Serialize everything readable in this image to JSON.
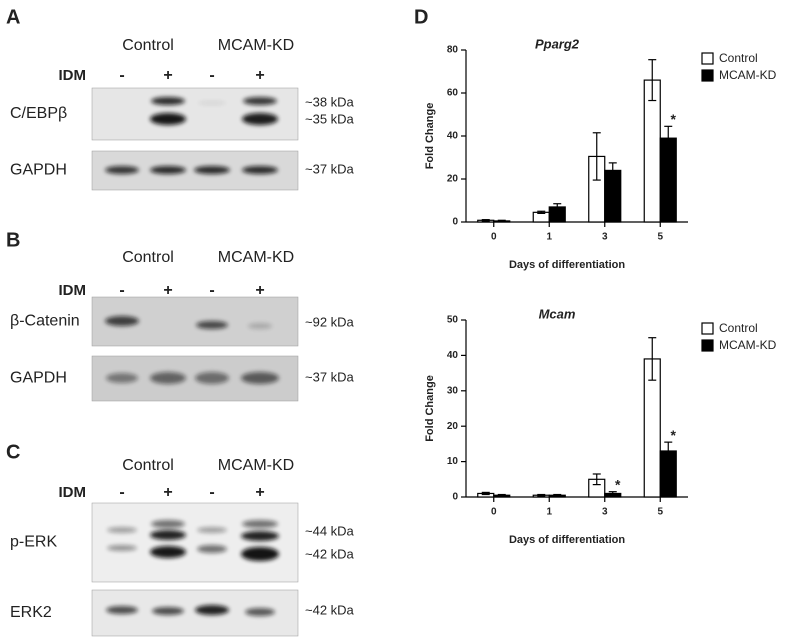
{
  "blots": [
    {
      "letter": "A",
      "groups": [
        "Control",
        "MCAM-KD"
      ],
      "treatment": "IDM",
      "lanes": [
        "-",
        "+",
        "-",
        "+"
      ],
      "rows": [
        {
          "label": "C/EBPβ",
          "sizes": [
            "~38 kDa",
            "~35 kDa"
          ]
        },
        {
          "label": "GAPDH",
          "sizes": [
            "~37 kDa"
          ]
        }
      ]
    },
    {
      "letter": "B",
      "groups": [
        "Control",
        "MCAM-KD"
      ],
      "treatment": "IDM",
      "lanes": [
        "-",
        "+",
        "-",
        "+"
      ],
      "rows": [
        {
          "label": "β-Catenin",
          "sizes": [
            "~92 kDa"
          ]
        },
        {
          "label": "GAPDH",
          "sizes": [
            "~37 kDa"
          ]
        }
      ]
    },
    {
      "letter": "C",
      "groups": [
        "Control",
        "MCAM-KD"
      ],
      "treatment": "IDM",
      "lanes": [
        "-",
        "+",
        "-",
        "+"
      ],
      "rows": [
        {
          "label": "p-ERK",
          "sizes": [
            "~44 kDa",
            "~42 kDa"
          ]
        },
        {
          "label": "ERK2",
          "sizes": [
            "~42 kDa"
          ]
        }
      ]
    }
  ],
  "chart_letter": "D",
  "chart_data": [
    {
      "type": "bar",
      "title": "Pparg2",
      "xlabel": "Days of differentiation",
      "ylabel": "Fold Change",
      "categories": [
        "0",
        "1",
        "3",
        "5"
      ],
      "series": [
        {
          "name": "Control",
          "color": "#ffffff",
          "values": [
            0.8,
            4.5,
            30.5,
            66
          ],
          "errors": [
            0.3,
            0.5,
            11,
            9.5
          ],
          "significance": [
            null,
            null,
            null,
            null
          ]
        },
        {
          "name": "MCAM-KD",
          "color": "#000000",
          "values": [
            0.5,
            7,
            24,
            39
          ],
          "errors": [
            0.3,
            1.5,
            3.5,
            5.5
          ],
          "significance": [
            null,
            null,
            null,
            "*"
          ]
        }
      ],
      "ylim": [
        0,
        80
      ],
      "yticks": [
        0,
        20,
        40,
        60,
        80
      ],
      "legend": "upper right"
    },
    {
      "type": "bar",
      "title": "Mcam",
      "xlabel": "Days of differentiation",
      "ylabel": "Fold Change",
      "categories": [
        "0",
        "1",
        "3",
        "5"
      ],
      "series": [
        {
          "name": "Control",
          "color": "#ffffff",
          "values": [
            1,
            0.5,
            5,
            39
          ],
          "errors": [
            0.3,
            0.2,
            1.5,
            6
          ],
          "significance": [
            null,
            null,
            null,
            null
          ]
        },
        {
          "name": "MCAM-KD",
          "color": "#000000",
          "values": [
            0.5,
            0.5,
            1,
            13
          ],
          "errors": [
            0.2,
            0.2,
            0.5,
            2.5
          ],
          "significance": [
            null,
            null,
            "*",
            "*"
          ]
        }
      ],
      "ylim": [
        0,
        50
      ],
      "yticks": [
        0,
        10,
        20,
        30,
        40,
        50
      ],
      "legend": "upper right"
    }
  ]
}
